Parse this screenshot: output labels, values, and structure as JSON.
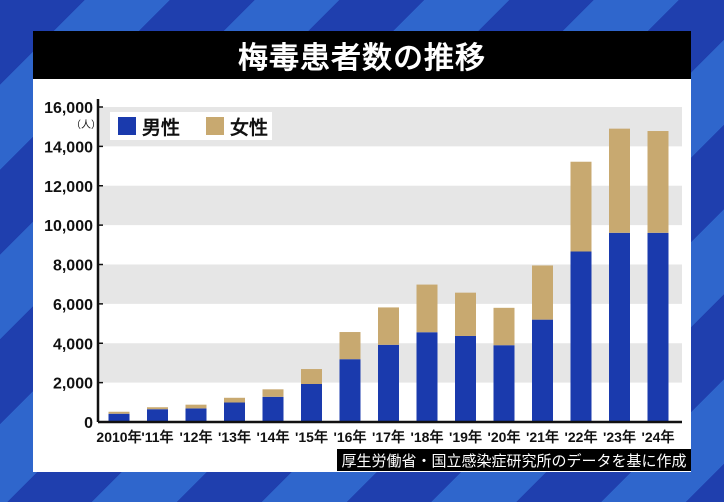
{
  "chart_data": {
    "type": "bar",
    "stacked": true,
    "title": "梅毒患者数の推移",
    "ylabel": "（人）",
    "ylim": [
      0,
      16000
    ],
    "yticks": [
      0,
      2000,
      4000,
      6000,
      8000,
      10000,
      12000,
      14000,
      16000
    ],
    "ytick_labels": [
      "0",
      "2,000",
      "4,000",
      "6,000",
      "8,000",
      "10,000",
      "12,000",
      "14,000",
      "16,000"
    ],
    "grid": "alternating horizontal bands",
    "legend_position": "top-left",
    "categories": [
      "2010年",
      "'11年",
      "'12年",
      "'13年",
      "'14年",
      "'15年",
      "'16年",
      "'17年",
      "'18年",
      "'19年",
      "'20年",
      "'21年",
      "'22年",
      "'23年",
      "'24年"
    ],
    "series": [
      {
        "name": "男性",
        "color": "#1a3aad",
        "values": [
          420,
          650,
          690,
          990,
          1280,
          1930,
          3190,
          3920,
          4560,
          4370,
          3900,
          5200,
          8660,
          9610,
          9610
        ]
      },
      {
        "name": "女性",
        "color": "#c8a970",
        "values": [
          100,
          100,
          190,
          240,
          380,
          760,
          1380,
          1900,
          2420,
          2200,
          1900,
          2750,
          4560,
          5290,
          5170
        ]
      }
    ]
  },
  "source": "厚生労働省・国立感染症研究所のデータを基に作成",
  "colors": {
    "band": "#e6e6e6",
    "title_bg": "#000000"
  }
}
